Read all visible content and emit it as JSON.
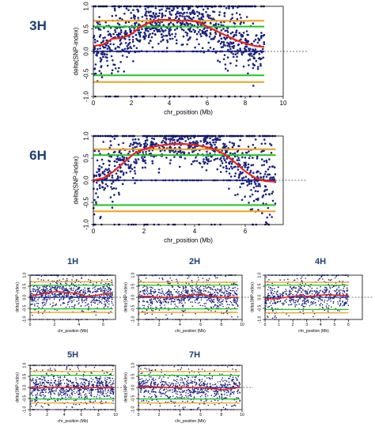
{
  "chart_data": [
    {
      "type": "scatter",
      "panel_label": "3H",
      "xlabel": "chr_position (Mb)",
      "ylabel": "delta(SNP-index)",
      "xlim": [
        0,
        10
      ],
      "ylim": [
        -1.0,
        1.0
      ],
      "x_ticks": [
        0,
        2,
        4,
        6,
        8,
        10
      ],
      "y_ticks": [
        -1.0,
        -0.5,
        0.0,
        0.5,
        1.0
      ],
      "x_tick_labels": [
        "0",
        "2",
        "4",
        "6",
        "8",
        "10"
      ],
      "y_tick_labels": [
        "-1.0",
        "-0.5",
        "0.0",
        "0.5",
        "1.0"
      ],
      "data_xmax": 9.0,
      "series": [
        {
          "role": "average_delta_snp_index",
          "color": "#e8231c",
          "x": [
            0,
            0.5,
            1.0,
            1.5,
            2.0,
            2.5,
            3.0,
            3.5,
            4.0,
            4.5,
            5.0,
            5.5,
            6.0,
            6.5,
            7.0,
            7.5,
            8.0,
            8.5,
            9.0
          ],
          "y": [
            0.12,
            0.15,
            0.28,
            0.3,
            0.38,
            0.55,
            0.65,
            0.7,
            0.7,
            0.68,
            0.68,
            0.66,
            0.55,
            0.45,
            0.35,
            0.25,
            0.18,
            0.12,
            0.1
          ]
        },
        {
          "role": "threshold_99_upper",
          "color": "#f0a020",
          "y": 0.68
        },
        {
          "role": "threshold_95_upper",
          "color": "#22c422",
          "y": 0.55
        },
        {
          "role": "threshold_95_lower",
          "color": "#22c422",
          "y": -0.53
        },
        {
          "role": "threshold_99_lower",
          "color": "#f0a020",
          "y": -0.68
        },
        {
          "role": "snp_points",
          "color": "#1a237e",
          "n": 1100
        }
      ]
    },
    {
      "type": "scatter",
      "panel_label": "6H",
      "xlabel": "chr_position (Mb)",
      "ylabel": "delta(SNP-index)",
      "xlim": [
        0,
        7.5
      ],
      "ylim": [
        -1.0,
        1.0
      ],
      "x_ticks": [
        0,
        2,
        4,
        6
      ],
      "y_ticks": [
        -1.0,
        -0.5,
        0.0,
        0.5,
        1.0
      ],
      "x_tick_labels": [
        "0",
        "2",
        "4",
        "6"
      ],
      "y_tick_labels": [
        "-1.0",
        "-0.5",
        "0.0",
        "0.5",
        "1.0"
      ],
      "data_xmax": 7.2,
      "series": [
        {
          "role": "average_delta_snp_index",
          "color": "#e8231c",
          "x": [
            0,
            0.4,
            0.8,
            1.2,
            1.6,
            2.0,
            2.4,
            2.8,
            3.2,
            3.6,
            4.0,
            4.4,
            4.8,
            5.2,
            5.6,
            6.0,
            6.4,
            6.8,
            7.2
          ],
          "y": [
            0.0,
            0.05,
            0.2,
            0.4,
            0.6,
            0.7,
            0.76,
            0.8,
            0.82,
            0.82,
            0.8,
            0.76,
            0.7,
            0.58,
            0.4,
            0.2,
            0.05,
            -0.02,
            -0.03
          ]
        },
        {
          "role": "threshold_99_upper",
          "color": "#f0a020",
          "y": 0.7
        },
        {
          "role": "threshold_95_upper",
          "color": "#22c422",
          "y": 0.57
        },
        {
          "role": "threshold_95_lower",
          "color": "#22c422",
          "y": -0.56
        },
        {
          "role": "threshold_99_lower",
          "color": "#f0a020",
          "y": -0.7
        },
        {
          "role": "snp_points",
          "color": "#1a237e",
          "n": 1000
        }
      ]
    },
    {
      "type": "scatter",
      "panel_label": "1H",
      "xlabel": "chr_position (Mb)",
      "ylabel": "delta(SNP-index)",
      "xlim": [
        0,
        7
      ],
      "ylim": [
        -1.0,
        1.0
      ],
      "x_ticks": [
        0,
        2,
        4,
        6
      ],
      "y_ticks": [
        -1.0,
        -0.5,
        0.0,
        0.5,
        1.0
      ],
      "x_tick_labels": [
        "0",
        "2",
        "4",
        "6"
      ],
      "y_tick_labels": [
        "-1.0",
        "-0.5",
        "0.0",
        "0.5",
        "1.0"
      ],
      "data_xmax": 6.8,
      "series": [
        {
          "role": "average_delta_snp_index",
          "color": "#e8231c",
          "x": [
            0,
            0.5,
            1,
            1.5,
            2,
            2.5,
            3,
            3.5,
            4,
            4.5,
            5,
            5.5,
            6,
            6.5,
            6.8
          ],
          "y": [
            0.05,
            0.1,
            0.15,
            0.2,
            0.25,
            0.25,
            0.2,
            0.2,
            0.15,
            0.05,
            0.05,
            0.1,
            0.15,
            0.15,
            0.15
          ]
        },
        {
          "role": "threshold_99_upper",
          "color": "#f0a020",
          "y": 0.7
        },
        {
          "role": "threshold_95_upper",
          "color": "#22c422",
          "y": 0.55
        },
        {
          "role": "threshold_95_lower",
          "color": "#22c422",
          "y": -0.52
        },
        {
          "role": "threshold_99_lower",
          "color": "#f0a020",
          "y": -0.68
        },
        {
          "role": "snp_points",
          "color": "#1a237e",
          "n": 900
        }
      ]
    },
    {
      "type": "scatter",
      "panel_label": "2H",
      "xlabel": "chr_position (Mb)",
      "ylabel": "delta(SNP-index)",
      "xlim": [
        0,
        10
      ],
      "ylim": [
        -1.0,
        1.0
      ],
      "x_ticks": [
        0,
        2,
        4,
        6,
        8,
        10
      ],
      "y_ticks": [
        -1.0,
        -0.5,
        0.0,
        0.5,
        1.0
      ],
      "x_tick_labels": [
        "0",
        "2",
        "4",
        "6",
        "8",
        "10"
      ],
      "y_tick_labels": [
        "-1.0",
        "-0.5",
        "0.0",
        "0.5",
        "1.0"
      ],
      "data_xmax": 9.6,
      "series": [
        {
          "role": "average_delta_snp_index",
          "color": "#e8231c",
          "x": [
            0,
            1,
            2,
            3,
            4,
            5,
            6,
            7,
            8,
            9,
            9.6
          ],
          "y": [
            0.05,
            0.05,
            0.0,
            0.0,
            0.02,
            0.1,
            0.15,
            0.05,
            0.0,
            0.0,
            0.0
          ]
        },
        {
          "role": "threshold_99_upper",
          "color": "#f0a020",
          "y": 0.68
        },
        {
          "role": "threshold_95_upper",
          "color": "#22c422",
          "y": 0.55
        },
        {
          "role": "threshold_95_lower",
          "color": "#22c422",
          "y": -0.52
        },
        {
          "role": "threshold_99_lower",
          "color": "#f0a020",
          "y": -0.68
        },
        {
          "role": "snp_points",
          "color": "#1a237e",
          "n": 900
        }
      ]
    },
    {
      "type": "scatter",
      "panel_label": "4H",
      "xlabel": "chr_position (Mb)",
      "ylabel": "delta(SNP-index)",
      "xlim": [
        0,
        7
      ],
      "ylim": [
        -1.0,
        1.0
      ],
      "x_ticks": [
        0,
        1,
        2,
        3,
        4,
        5,
        6
      ],
      "y_ticks": [
        -1.0,
        -0.5,
        0.0,
        0.5,
        1.0
      ],
      "x_tick_labels": [
        "0",
        "1",
        "2",
        "3",
        "4",
        "5",
        "6"
      ],
      "y_tick_labels": [
        "-1.0",
        "-0.5",
        "0.0",
        "0.5",
        "1.0"
      ],
      "data_xmax": 6.0,
      "series": [
        {
          "role": "average_delta_snp_index",
          "color": "#e8231c",
          "x": [
            0,
            0.5,
            1,
            1.5,
            2,
            2.5,
            3,
            3.5,
            4,
            4.5,
            5,
            5.5,
            6
          ],
          "y": [
            -0.05,
            -0.08,
            -0.05,
            0.0,
            0.05,
            0.08,
            0.05,
            0.05,
            0.1,
            0.12,
            0.1,
            0.08,
            0.08
          ]
        },
        {
          "role": "threshold_99_upper",
          "color": "#f0a020",
          "y": 0.68
        },
        {
          "role": "threshold_95_upper",
          "color": "#22c422",
          "y": 0.55
        },
        {
          "role": "threshold_95_lower",
          "color": "#22c422",
          "y": -0.55
        },
        {
          "role": "threshold_99_lower",
          "color": "#f0a020",
          "y": -0.7
        },
        {
          "role": "snp_points",
          "color": "#1a237e",
          "n": 700
        }
      ]
    },
    {
      "type": "scatter",
      "panel_label": "5H",
      "xlabel": "chr_position (Mb)",
      "ylabel": "delta(SNP-index)",
      "xlim": [
        0,
        10
      ],
      "ylim": [
        -1.0,
        1.0
      ],
      "x_ticks": [
        0,
        2,
        4,
        6,
        8,
        10
      ],
      "y_ticks": [
        -1.0,
        -0.5,
        0.0,
        0.5,
        1.0
      ],
      "x_tick_labels": [
        "0",
        "2",
        "4",
        "6",
        "8",
        "10"
      ],
      "y_tick_labels": [
        "-1.0",
        "-0.5",
        "0.0",
        "0.5",
        "1.0"
      ],
      "data_xmax": 9.8,
      "series": [
        {
          "role": "average_delta_snp_index",
          "color": "#e8231c",
          "x": [
            0,
            1,
            2,
            3,
            4,
            5,
            6,
            7,
            8,
            9,
            9.8
          ],
          "y": [
            0.0,
            -0.02,
            0.0,
            0.02,
            0.0,
            0.0,
            -0.02,
            0.0,
            0.0,
            -0.02,
            0.0
          ]
        },
        {
          "role": "threshold_99_upper",
          "color": "#f0a020",
          "y": 0.72
        },
        {
          "role": "threshold_95_upper",
          "color": "#22c422",
          "y": 0.55
        },
        {
          "role": "threshold_95_lower",
          "color": "#22c422",
          "y": -0.52
        },
        {
          "role": "threshold_99_lower",
          "color": "#f0a020",
          "y": -0.7
        },
        {
          "role": "snp_points",
          "color": "#1a237e",
          "n": 900
        }
      ]
    },
    {
      "type": "scatter",
      "panel_label": "7H",
      "xlabel": "chr_position (Mb)",
      "ylabel": "delta(SNP-index)",
      "xlim": [
        0,
        10
      ],
      "ylim": [
        -1.0,
        1.0
      ],
      "x_ticks": [
        0,
        2,
        4,
        6,
        8,
        10
      ],
      "y_ticks": [
        -1.0,
        -0.5,
        0.0,
        0.5,
        1.0
      ],
      "x_tick_labels": [
        "0",
        "2",
        "4",
        "6",
        "8",
        "10"
      ],
      "y_tick_labels": [
        "-1.0",
        "-0.5",
        "0.0",
        "0.5",
        "1.0"
      ],
      "data_xmax": 9.8,
      "series": [
        {
          "role": "average_delta_snp_index",
          "color": "#e8231c",
          "x": [
            0,
            1,
            2,
            3,
            4,
            5,
            6,
            7,
            8,
            9,
            9.8
          ],
          "y": [
            0.05,
            0.05,
            0.02,
            0.0,
            0.0,
            0.0,
            0.0,
            -0.05,
            -0.1,
            -0.05,
            0.0
          ]
        },
        {
          "role": "threshold_99_upper",
          "color": "#f0a020",
          "y": 0.72
        },
        {
          "role": "threshold_95_upper",
          "color": "#22c422",
          "y": 0.55
        },
        {
          "role": "threshold_95_lower",
          "color": "#22c422",
          "y": -0.52
        },
        {
          "role": "threshold_99_lower",
          "color": "#f0a020",
          "y": -0.7
        },
        {
          "role": "snp_points",
          "color": "#1a237e",
          "n": 900
        }
      ]
    }
  ]
}
